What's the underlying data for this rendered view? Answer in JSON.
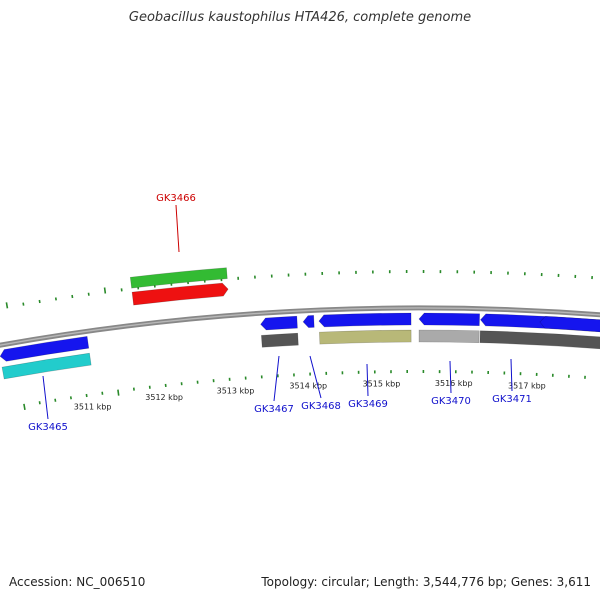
{
  "title": "Geobacillus kaustophilus HTA426, complete genome",
  "footer": {
    "accession": "Accession: NC_006510",
    "summary": "Topology: circular; Length: 3,544,776 bp; Genes: 3,611"
  },
  "colors": {
    "background": "#ffffff",
    "backbone": "#888888",
    "tick": "#2a8a2a",
    "gene_forward": "#ee1111",
    "gene_reverse": "#1515ee",
    "label_forward": "#cc0000",
    "label_reverse": "#1010cc"
  },
  "scale_ticks": [
    "3511 kbp",
    "3512 kbp",
    "3513 kbp",
    "3514 kbp",
    "3515 kbp",
    "3516 kbp",
    "3517 kbp"
  ],
  "genes": [
    {
      "name": "GK3465",
      "strand": "-",
      "color": "#1515ee",
      "cog_color": "#22cccc"
    },
    {
      "name": "GK3466",
      "strand": "+",
      "color": "#ee1111",
      "cog_color": "#33bb33"
    },
    {
      "name": "GK3467",
      "strand": "-",
      "color": "#1515ee",
      "cog_color": "#555555"
    },
    {
      "name": "GK3468",
      "strand": "-",
      "color": "#1515ee",
      "cog_color": ""
    },
    {
      "name": "GK3469",
      "strand": "-",
      "color": "#1515ee",
      "cog_color": "#b8b878"
    },
    {
      "name": "GK3470",
      "strand": "-",
      "color": "#1515ee",
      "cog_color": "#aaaaaa"
    },
    {
      "name": "GK3471",
      "strand": "-",
      "color": "#1515ee",
      "cog_color": "#555555"
    }
  ]
}
